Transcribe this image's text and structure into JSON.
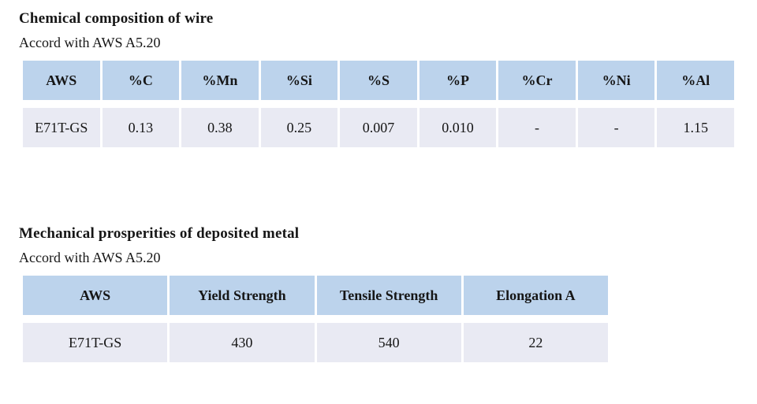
{
  "colors": {
    "header_bg": "#bcd3ec",
    "row_bg": "#e9eaf3",
    "text": "#161616",
    "page_bg": "#ffffff"
  },
  "chemical_section": {
    "title": "Chemical composition of wire",
    "subtitle": "Accord with AWS A5.20",
    "table": {
      "headers": [
        "AWS",
        "%C",
        "%Mn",
        "%Si",
        "%S",
        "%P",
        "%Cr",
        "%Ni",
        "%Al"
      ],
      "rows": [
        [
          "E71T-GS",
          "0.13",
          "0.38",
          "0.25",
          "0.007",
          "0.010",
          "-",
          "-",
          "1.15"
        ]
      ]
    }
  },
  "mechanical_section": {
    "title": "Mechanical prosperities of deposited metal",
    "subtitle": "Accord with AWS A5.20",
    "table": {
      "headers": [
        "AWS",
        "Yield Strength",
        "Tensile Strength",
        "Elongation A"
      ],
      "rows": [
        [
          "E71T-GS",
          "430",
          "540",
          "22"
        ]
      ]
    }
  }
}
